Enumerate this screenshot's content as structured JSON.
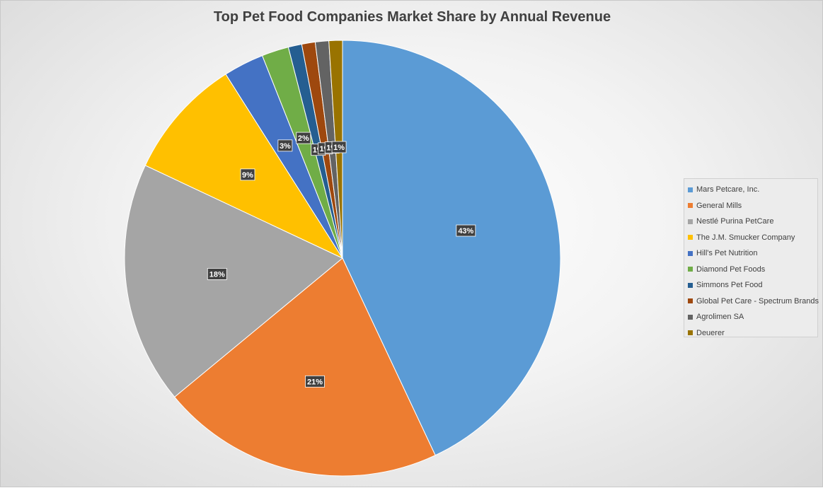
{
  "chart_data": {
    "type": "pie",
    "title": "Top Pet Food Companies Market Share by Annual Revenue",
    "categories": [
      "Mars Petcare, Inc.",
      "General Mills",
      "Nestlé Purina PetCare",
      "The J.M. Smucker Company",
      "Hill's Pet Nutrition",
      "Diamond Pet Foods",
      "Simmons Pet Food",
      "Global Pet Care - Spectrum Brands",
      "Agrolimen SA",
      "Deuerer"
    ],
    "values": [
      43,
      21,
      18,
      9,
      3,
      2,
      1,
      1,
      1,
      1
    ],
    "data_labels": [
      "43%",
      "21%",
      "18%",
      "9%",
      "3%",
      "2%",
      "1%",
      "1%",
      "1%",
      "1%"
    ],
    "colors": [
      "#5b9bd5",
      "#ed7d31",
      "#a5a5a5",
      "#ffc000",
      "#4472c4",
      "#70ad47",
      "#255e91",
      "#9e480e",
      "#636363",
      "#997300"
    ],
    "legend_position": "right"
  }
}
